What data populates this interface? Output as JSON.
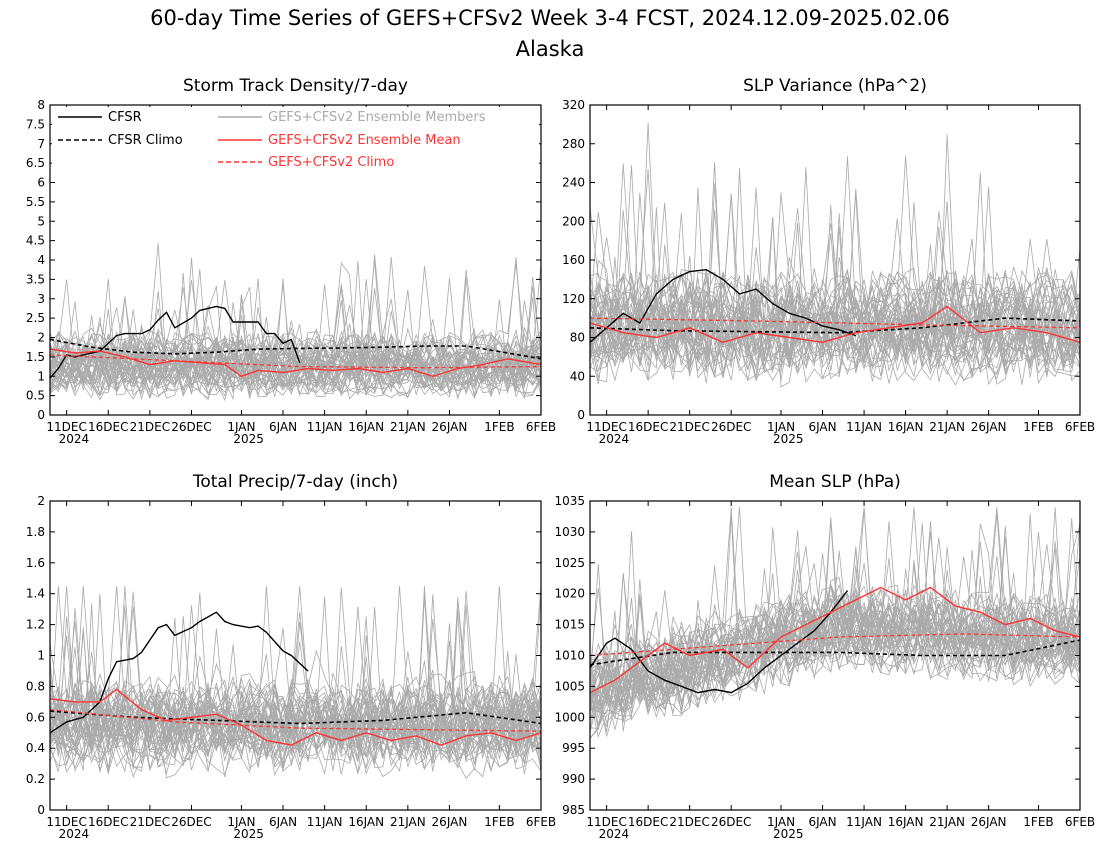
{
  "figure": {
    "title": "60-day Time Series of GEFS+CFSv2 Week 3-4 FCST, 2024.12.09-2025.02.06",
    "subtitle": "Alaska"
  },
  "x_axis": {
    "range": [
      "2024-12-09",
      "2025-02-06"
    ],
    "ticks": [
      {
        "date": "2024-12-11",
        "label": "11DEC",
        "year_label": "2024"
      },
      {
        "date": "2024-12-16",
        "label": "16DEC"
      },
      {
        "date": "2024-12-21",
        "label": "21DEC"
      },
      {
        "date": "2024-12-26",
        "label": "26DEC"
      },
      {
        "date": "2025-01-01",
        "label": "1JAN",
        "year_label": "2025"
      },
      {
        "date": "2025-01-06",
        "label": "6JAN"
      },
      {
        "date": "2025-01-11",
        "label": "11JAN"
      },
      {
        "date": "2025-01-16",
        "label": "16JAN"
      },
      {
        "date": "2025-01-21",
        "label": "21JAN"
      },
      {
        "date": "2025-01-26",
        "label": "26JAN"
      },
      {
        "date": "2025-02-01",
        "label": "1FEB"
      },
      {
        "date": "2025-02-06",
        "label": "6FEB"
      }
    ]
  },
  "legend": {
    "placement": "top of first panel",
    "entries": [
      {
        "label": "CFSR",
        "color": "#000000",
        "style": "solid"
      },
      {
        "label": "CFSR Climo",
        "color": "#000000",
        "style": "dashed"
      },
      {
        "label": "GEFS+CFSv2 Ensemble Members",
        "color": "#aaaaaa",
        "style": "solid"
      },
      {
        "label": "GEFS+CFSv2 Ensemble Mean",
        "color": "#ff3333",
        "style": "solid"
      },
      {
        "label": "GEFS+CFSv2 Climo",
        "color": "#ff3333",
        "style": "dashed"
      }
    ]
  },
  "colors": {
    "cfsr": "#000000",
    "members": "#aaaaaa",
    "ens_mean": "#ff3333"
  },
  "chart_data": [
    {
      "type": "line",
      "title": "Storm Track Density/7-day",
      "ylim": [
        0,
        8
      ],
      "yticks": [
        "0",
        "0.5",
        "1",
        "1.5",
        "2",
        "2.5",
        "3",
        "3.5",
        "4",
        "4.5",
        "5",
        "5.5",
        "6",
        "6.5",
        "7",
        "7.5",
        "8"
      ],
      "ytick_values": [
        0,
        0.5,
        1,
        1.5,
        2,
        2.5,
        3,
        3.5,
        4,
        4.5,
        5,
        5.5,
        6,
        6.5,
        7,
        7.5,
        8
      ],
      "members": {
        "count": 48,
        "center": 1.3,
        "spread": 0.7,
        "max": 4.8,
        "min": 0
      },
      "series": [
        {
          "name": "CFSR",
          "role": "cfsr",
          "x": [
            "2024-12-09",
            "2024-12-10",
            "2024-12-11",
            "2024-12-12",
            "2024-12-13",
            "2024-12-15",
            "2024-12-17",
            "2024-12-18",
            "2024-12-20",
            "2024-12-21",
            "2024-12-22",
            "2024-12-23",
            "2024-12-24",
            "2024-12-26",
            "2024-12-27",
            "2024-12-29",
            "2024-12-30",
            "2024-12-31",
            "2025-01-02",
            "2025-01-03",
            "2025-01-04",
            "2025-01-05",
            "2025-01-06",
            "2025-01-07",
            "2025-01-08"
          ],
          "y": [
            0.95,
            1.2,
            1.55,
            1.5,
            1.55,
            1.65,
            2.05,
            2.1,
            2.1,
            2.2,
            2.45,
            2.65,
            2.25,
            2.5,
            2.7,
            2.8,
            2.75,
            2.4,
            2.4,
            2.4,
            2.1,
            2.1,
            1.85,
            1.95,
            1.35
          ]
        },
        {
          "name": "CFSR Climo",
          "role": "cfsr_climo",
          "x": [
            "2024-12-09",
            "2024-12-14",
            "2024-12-19",
            "2024-12-24",
            "2024-12-29",
            "2025-01-03",
            "2025-01-08",
            "2025-01-13",
            "2025-01-18",
            "2025-01-23",
            "2025-01-28",
            "2025-02-02",
            "2025-02-06"
          ],
          "y": [
            1.95,
            1.75,
            1.62,
            1.58,
            1.62,
            1.7,
            1.72,
            1.73,
            1.75,
            1.78,
            1.78,
            1.6,
            1.45
          ]
        },
        {
          "name": "GEFS+CFSv2 Ensemble Mean",
          "role": "ens_mean",
          "x": [
            "2024-12-09",
            "2024-12-12",
            "2024-12-15",
            "2024-12-18",
            "2024-12-21",
            "2024-12-24",
            "2024-12-27",
            "2024-12-30",
            "2025-01-01",
            "2025-01-03",
            "2025-01-06",
            "2025-01-09",
            "2025-01-12",
            "2025-01-15",
            "2025-01-18",
            "2025-01-21",
            "2025-01-24",
            "2025-01-27",
            "2025-01-30",
            "2025-02-02",
            "2025-02-06"
          ],
          "y": [
            1.7,
            1.6,
            1.65,
            1.5,
            1.3,
            1.4,
            1.35,
            1.3,
            1.0,
            1.15,
            1.1,
            1.2,
            1.15,
            1.2,
            1.1,
            1.2,
            1.0,
            1.2,
            1.3,
            1.45,
            1.3
          ]
        },
        {
          "name": "GEFS+CFSv2 Climo",
          "role": "ens_climo",
          "x": [
            "2024-12-09",
            "2024-12-24",
            "2025-01-08",
            "2025-01-23",
            "2025-02-06"
          ],
          "y": [
            1.55,
            1.4,
            1.25,
            1.22,
            1.25
          ]
        }
      ]
    },
    {
      "type": "line",
      "title": "SLP Variance (hPa^2)",
      "ylim": [
        0,
        320
      ],
      "yticks": [
        "0",
        "40",
        "80",
        "120",
        "160",
        "200",
        "240",
        "280",
        "320"
      ],
      "ytick_values": [
        0,
        40,
        80,
        120,
        160,
        200,
        240,
        280,
        320
      ],
      "members": {
        "count": 48,
        "center": 90,
        "spread": 45,
        "max": 305,
        "min": 20
      },
      "series": [
        {
          "name": "CFSR",
          "role": "cfsr",
          "x": [
            "2024-12-09",
            "2024-12-11",
            "2024-12-13",
            "2024-12-15",
            "2024-12-17",
            "2024-12-19",
            "2024-12-21",
            "2024-12-23",
            "2024-12-25",
            "2024-12-27",
            "2024-12-29",
            "2024-12-31",
            "2025-01-02",
            "2025-01-04",
            "2025-01-06",
            "2025-01-08",
            "2025-01-10"
          ],
          "y": [
            75,
            90,
            105,
            95,
            125,
            140,
            148,
            150,
            140,
            125,
            130,
            115,
            105,
            100,
            92,
            88,
            82
          ]
        },
        {
          "name": "CFSR Climo",
          "role": "cfsr_climo",
          "x": [
            "2024-12-09",
            "2024-12-19",
            "2024-12-29",
            "2025-01-08",
            "2025-01-18",
            "2025-01-28",
            "2025-02-06"
          ],
          "y": [
            90,
            87,
            86,
            85,
            90,
            100,
            97
          ]
        },
        {
          "name": "GEFS+CFSv2 Ensemble Mean",
          "role": "ens_mean",
          "x": [
            "2024-12-09",
            "2024-12-13",
            "2024-12-17",
            "2024-12-21",
            "2024-12-25",
            "2024-12-29",
            "2025-01-02",
            "2025-01-06",
            "2025-01-10",
            "2025-01-14",
            "2025-01-18",
            "2025-01-21",
            "2025-01-25",
            "2025-01-29",
            "2025-02-02",
            "2025-02-06"
          ],
          "y": [
            95,
            85,
            80,
            90,
            75,
            85,
            80,
            75,
            85,
            90,
            95,
            112,
            85,
            90,
            85,
            75
          ]
        },
        {
          "name": "GEFS+CFSv2 Climo",
          "role": "ens_climo",
          "x": [
            "2024-12-09",
            "2024-12-29",
            "2025-01-18",
            "2025-02-06"
          ],
          "y": [
            100,
            97,
            93,
            90
          ]
        }
      ]
    },
    {
      "type": "line",
      "title": "Total Precip/7-day (inch)",
      "ylim": [
        0,
        2
      ],
      "yticks": [
        "0",
        "0.2",
        "0.4",
        "0.6",
        "0.8",
        "1",
        "1.2",
        "1.4",
        "1.6",
        "1.8",
        "2"
      ],
      "ytick_values": [
        0,
        0.2,
        0.4,
        0.6,
        0.8,
        1,
        1.2,
        1.4,
        1.6,
        1.8,
        2
      ],
      "members": {
        "count": 48,
        "center": 0.55,
        "spread": 0.25,
        "max": 1.45,
        "min": 0.05
      },
      "series": [
        {
          "name": "CFSR",
          "role": "cfsr",
          "x": [
            "2024-12-09",
            "2024-12-11",
            "2024-12-13",
            "2024-12-15",
            "2024-12-16",
            "2024-12-17",
            "2024-12-19",
            "2024-12-20",
            "2024-12-22",
            "2024-12-23",
            "2024-12-24",
            "2024-12-26",
            "2024-12-27",
            "2024-12-28",
            "2024-12-29",
            "2024-12-30",
            "2024-12-31",
            "2025-01-02",
            "2025-01-03",
            "2025-01-04",
            "2025-01-06",
            "2025-01-07",
            "2025-01-09"
          ],
          "y": [
            0.5,
            0.57,
            0.6,
            0.7,
            0.85,
            0.96,
            0.98,
            1.02,
            1.18,
            1.2,
            1.13,
            1.18,
            1.22,
            1.25,
            1.28,
            1.22,
            1.2,
            1.18,
            1.19,
            1.15,
            1.03,
            1.0,
            0.9
          ]
        },
        {
          "name": "CFSR Climo",
          "role": "cfsr_climo",
          "x": [
            "2024-12-09",
            "2024-12-19",
            "2024-12-29",
            "2025-01-08",
            "2025-01-18",
            "2025-01-28",
            "2025-02-06"
          ],
          "y": [
            0.64,
            0.6,
            0.58,
            0.56,
            0.58,
            0.63,
            0.56
          ]
        },
        {
          "name": "GEFS+CFSv2 Ensemble Mean",
          "role": "ens_mean",
          "x": [
            "2024-12-09",
            "2024-12-12",
            "2024-12-15",
            "2024-12-17",
            "2024-12-20",
            "2024-12-23",
            "2024-12-26",
            "2024-12-29",
            "2025-01-01",
            "2025-01-04",
            "2025-01-07",
            "2025-01-10",
            "2025-01-13",
            "2025-01-16",
            "2025-01-19",
            "2025-01-22",
            "2025-01-25",
            "2025-01-28",
            "2025-01-31",
            "2025-02-03",
            "2025-02-06"
          ],
          "y": [
            0.72,
            0.7,
            0.7,
            0.78,
            0.65,
            0.58,
            0.6,
            0.62,
            0.55,
            0.45,
            0.42,
            0.5,
            0.45,
            0.5,
            0.45,
            0.48,
            0.42,
            0.48,
            0.5,
            0.45,
            0.5
          ]
        },
        {
          "name": "GEFS+CFSv2 Climo",
          "role": "ens_climo",
          "x": [
            "2024-12-09",
            "2024-12-24",
            "2025-01-08",
            "2025-01-23",
            "2025-02-06"
          ],
          "y": [
            0.65,
            0.57,
            0.53,
            0.52,
            0.51
          ]
        }
      ]
    },
    {
      "type": "line",
      "title": "Mean SLP (hPa)",
      "ylim": [
        985,
        1035
      ],
      "yticks": [
        "985",
        "990",
        "995",
        "1000",
        "1005",
        "1010",
        "1015",
        "1020",
        "1025",
        "1030",
        "1035"
      ],
      "ytick_values": [
        985,
        990,
        995,
        1000,
        1005,
        1010,
        1015,
        1020,
        1025,
        1030,
        1035
      ],
      "members": {
        "count": 48,
        "center": 1013,
        "spread": 6,
        "max": 1034,
        "min": 992,
        "trend": [
          1004,
          1015,
          1012
        ]
      },
      "series": [
        {
          "name": "CFSR",
          "role": "cfsr",
          "x": [
            "2024-12-09",
            "2024-12-11",
            "2024-12-12",
            "2024-12-14",
            "2024-12-16",
            "2024-12-18",
            "2024-12-20",
            "2024-12-22",
            "2024-12-24",
            "2024-12-26",
            "2024-12-28",
            "2024-12-30",
            "2025-01-01",
            "2025-01-03",
            "2025-01-05",
            "2025-01-07",
            "2025-01-09"
          ],
          "y": [
            1008,
            1012,
            1012.8,
            1011,
            1007.5,
            1006,
            1005,
            1004,
            1004.5,
            1004,
            1005.5,
            1008,
            1010,
            1012,
            1014,
            1017,
            1020.5
          ]
        },
        {
          "name": "CFSR Climo",
          "role": "cfsr_climo",
          "x": [
            "2024-12-09",
            "2024-12-19",
            "2024-12-29",
            "2025-01-08",
            "2025-01-18",
            "2025-01-28",
            "2025-02-06"
          ],
          "y": [
            1008.5,
            1010.5,
            1010.5,
            1010.5,
            1010,
            1010,
            1012.5
          ]
        },
        {
          "name": "GEFS+CFSv2 Ensemble Mean",
          "role": "ens_mean",
          "x": [
            "2024-12-09",
            "2024-12-12",
            "2024-12-15",
            "2024-12-18",
            "2024-12-21",
            "2024-12-25",
            "2024-12-28",
            "2025-01-01",
            "2025-01-04",
            "2025-01-07",
            "2025-01-10",
            "2025-01-13",
            "2025-01-16",
            "2025-01-19",
            "2025-01-22",
            "2025-01-25",
            "2025-01-28",
            "2025-01-31",
            "2025-02-03",
            "2025-02-06"
          ],
          "y": [
            1004,
            1006,
            1009,
            1012,
            1010,
            1011,
            1008,
            1013,
            1015,
            1017,
            1019,
            1021,
            1019,
            1021,
            1018,
            1017,
            1015,
            1016,
            1014,
            1013
          ]
        },
        {
          "name": "GEFS+CFSv2 Climo",
          "role": "ens_climo",
          "x": [
            "2024-12-09",
            "2024-12-24",
            "2025-01-08",
            "2025-01-23",
            "2025-02-06"
          ],
          "y": [
            1010,
            1011.5,
            1013,
            1013.5,
            1013
          ]
        }
      ]
    }
  ]
}
